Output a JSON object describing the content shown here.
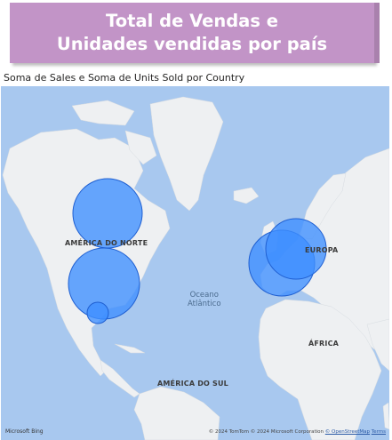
{
  "banner": {
    "title_line1": "Total de Vendas e",
    "title_line2": "Unidades vendidas por país"
  },
  "visual": {
    "title": "Soma de Sales e Soma de Units Sold por Country"
  },
  "map": {
    "labels": {
      "north_america": "AMÉRICA DO NORTE",
      "europe": "EUROPA",
      "africa": "ÁFRICA",
      "south_america": "AMÉRICA DO SUL",
      "ocean_line1": "Oceano",
      "ocean_line2": "Atlântico"
    },
    "colors": {
      "water": "#a8c8ef",
      "land": "#eef0f2",
      "bubble_fill": "#3d8eff",
      "bubble_stroke": "#1f5fd1"
    }
  },
  "footer": {
    "bing": "Microsoft Bing",
    "attribution": "© 2024 TomTom © 2024 Microsoft Corporation",
    "osm": "© OpenStreetMap",
    "terms": "Terms"
  }
}
